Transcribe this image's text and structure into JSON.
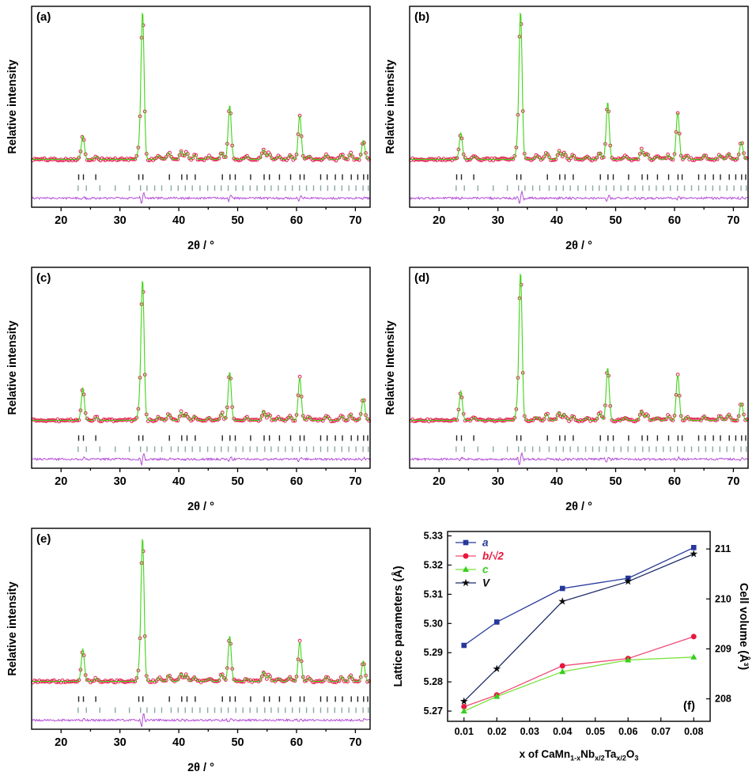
{
  "chart_data": [
    {
      "type": "xrd-pattern",
      "panel_label": "(a)",
      "xlabel": "2θ / °",
      "ylabel": "Relative intensity",
      "xlim": [
        15,
        72.5
      ],
      "xticks": [
        20,
        30,
        40,
        50,
        60,
        70
      ],
      "seed": 101,
      "series": [
        {
          "name": "observed",
          "style": "open-circle-markers",
          "color": "#e0204b"
        },
        {
          "name": "calculated",
          "style": "solid-line",
          "color": "#41d318"
        },
        {
          "name": "bragg-reflections-phase-1",
          "style": "tick-marks",
          "color": "#222222"
        },
        {
          "name": "bragg-reflections-phase-2",
          "style": "tick-marks",
          "color": "#8ba8a3"
        },
        {
          "name": "difference",
          "style": "solid-line",
          "color": "#b44fd8"
        }
      ],
      "peaks": [
        [
          23.7,
          0.16
        ],
        [
          26.0,
          0.02
        ],
        [
          33.3,
          0.08
        ],
        [
          33.85,
          1.0
        ],
        [
          36.6,
          0.025
        ],
        [
          38.3,
          0.045
        ],
        [
          40.4,
          0.055
        ],
        [
          41.3,
          0.045
        ],
        [
          42.7,
          0.03
        ],
        [
          45.1,
          0.02
        ],
        [
          47.3,
          0.05
        ],
        [
          48.65,
          0.37
        ],
        [
          51.6,
          0.02
        ],
        [
          54.4,
          0.065
        ],
        [
          55.3,
          0.04
        ],
        [
          57.0,
          0.02
        ],
        [
          58.9,
          0.03
        ],
        [
          60.55,
          0.3
        ],
        [
          62.1,
          0.025
        ],
        [
          65.1,
          0.03
        ],
        [
          67.7,
          0.03
        ],
        [
          69.2,
          0.04
        ],
        [
          71.35,
          0.13
        ]
      ],
      "bragg_phase1": [
        23.0,
        23.8,
        25.9,
        33.2,
        33.9,
        38.4,
        40.5,
        41.4,
        42.8,
        47.4,
        48.7,
        49.6,
        52.2,
        54.5,
        55.4,
        57.1,
        59.0,
        60.6,
        61.3,
        64.1,
        65.2,
        66.6,
        67.8,
        69.3,
        70.4,
        71.4,
        72.1
      ],
      "bragg_phase2": [
        22.9,
        24.3,
        26.6,
        29.2,
        31.6,
        33.5,
        34.6,
        35.9,
        37.1,
        38.7,
        39.9,
        41.1,
        42.3,
        43.6,
        44.9,
        46.1,
        47.2,
        48.4,
        49.7,
        50.9,
        52.1,
        53.3,
        54.6,
        55.7,
        56.9,
        58.1,
        59.3,
        60.5,
        61.7,
        62.9,
        64.1,
        65.3,
        66.5,
        67.7,
        68.9,
        70.1,
        71.3,
        72.2
      ]
    },
    {
      "type": "xrd-pattern",
      "panel_label": "(b)",
      "xlabel": "2θ / °",
      "ylabel": "Relative intensity",
      "xlim": [
        15,
        72.5
      ],
      "xticks": [
        20,
        30,
        40,
        50,
        60,
        70
      ],
      "seed": 202,
      "series": [
        {
          "name": "observed",
          "style": "open-circle-markers",
          "color": "#e0204b"
        },
        {
          "name": "calculated",
          "style": "solid-line",
          "color": "#41d318"
        },
        {
          "name": "bragg-reflections-phase-1",
          "style": "tick-marks",
          "color": "#222222"
        },
        {
          "name": "bragg-reflections-phase-2",
          "style": "tick-marks",
          "color": "#8ba8a3"
        },
        {
          "name": "difference",
          "style": "solid-line",
          "color": "#b44fd8"
        }
      ],
      "peaks": [
        [
          23.7,
          0.18
        ],
        [
          26.0,
          0.02
        ],
        [
          33.3,
          0.08
        ],
        [
          33.85,
          1.0
        ],
        [
          36.6,
          0.025
        ],
        [
          38.3,
          0.045
        ],
        [
          40.4,
          0.055
        ],
        [
          41.3,
          0.045
        ],
        [
          42.7,
          0.03
        ],
        [
          45.1,
          0.02
        ],
        [
          47.3,
          0.05
        ],
        [
          48.65,
          0.39
        ],
        [
          51.6,
          0.02
        ],
        [
          54.4,
          0.065
        ],
        [
          55.3,
          0.04
        ],
        [
          57.0,
          0.02
        ],
        [
          58.9,
          0.03
        ],
        [
          60.55,
          0.32
        ],
        [
          62.1,
          0.025
        ],
        [
          65.1,
          0.03
        ],
        [
          67.7,
          0.03
        ],
        [
          69.2,
          0.04
        ],
        [
          71.35,
          0.12
        ]
      ],
      "bragg_phase1": [
        23.0,
        23.8,
        25.9,
        33.2,
        33.9,
        38.4,
        40.5,
        41.4,
        42.8,
        47.4,
        48.7,
        49.6,
        52.2,
        54.5,
        55.4,
        57.1,
        59.0,
        60.6,
        61.3,
        64.1,
        65.2,
        66.6,
        67.8,
        69.3,
        70.4,
        71.4,
        72.1
      ],
      "bragg_phase2": [
        22.9,
        24.3,
        26.6,
        29.2,
        31.6,
        33.5,
        34.6,
        35.9,
        37.1,
        38.7,
        39.9,
        41.1,
        42.3,
        43.6,
        44.9,
        46.1,
        47.2,
        48.4,
        49.7,
        50.9,
        52.1,
        53.3,
        54.6,
        55.7,
        56.9,
        58.1,
        59.3,
        60.5,
        61.7,
        62.9,
        64.1,
        65.3,
        66.5,
        67.7,
        68.9,
        70.1,
        71.3,
        72.2
      ]
    },
    {
      "type": "xrd-pattern",
      "panel_label": "(c)",
      "xlabel": "2θ / °",
      "ylabel": "Relative intensity",
      "xlim": [
        15,
        72.5
      ],
      "xticks": [
        20,
        30,
        40,
        50,
        60,
        70
      ],
      "seed": 303,
      "series": [
        {
          "name": "observed",
          "style": "open-circle-markers",
          "color": "#e0204b"
        },
        {
          "name": "calculated",
          "style": "solid-line",
          "color": "#41d318"
        },
        {
          "name": "bragg-reflections-phase-1",
          "style": "tick-marks",
          "color": "#222222"
        },
        {
          "name": "bragg-reflections-phase-2",
          "style": "tick-marks",
          "color": "#8ba8a3"
        },
        {
          "name": "difference",
          "style": "solid-line",
          "color": "#b44fd8"
        }
      ],
      "peaks": [
        [
          23.7,
          0.22
        ],
        [
          26.0,
          0.02
        ],
        [
          33.3,
          0.08
        ],
        [
          33.85,
          0.95
        ],
        [
          36.6,
          0.025
        ],
        [
          38.3,
          0.045
        ],
        [
          40.4,
          0.055
        ],
        [
          41.3,
          0.045
        ],
        [
          42.7,
          0.03
        ],
        [
          45.1,
          0.02
        ],
        [
          47.3,
          0.05
        ],
        [
          48.65,
          0.33
        ],
        [
          51.6,
          0.02
        ],
        [
          54.4,
          0.065
        ],
        [
          55.3,
          0.04
        ],
        [
          57.0,
          0.02
        ],
        [
          58.9,
          0.03
        ],
        [
          60.55,
          0.29
        ],
        [
          62.1,
          0.025
        ],
        [
          65.1,
          0.03
        ],
        [
          67.7,
          0.03
        ],
        [
          69.2,
          0.04
        ],
        [
          71.35,
          0.15
        ]
      ],
      "bragg_phase1": [
        23.0,
        23.8,
        25.9,
        33.2,
        33.9,
        38.4,
        40.5,
        41.4,
        42.8,
        47.4,
        48.7,
        49.6,
        52.2,
        54.5,
        55.4,
        57.1,
        59.0,
        60.6,
        61.3,
        64.1,
        65.2,
        66.6,
        67.8,
        69.3,
        70.4,
        71.4,
        72.1
      ],
      "bragg_phase2": [
        22.9,
        24.3,
        26.6,
        29.2,
        31.6,
        33.5,
        34.6,
        35.9,
        37.1,
        38.7,
        39.9,
        41.1,
        42.3,
        43.6,
        44.9,
        46.1,
        47.2,
        48.4,
        49.7,
        50.9,
        52.1,
        53.3,
        54.6,
        55.7,
        56.9,
        58.1,
        59.3,
        60.5,
        61.7,
        62.9,
        64.1,
        65.3,
        66.5,
        67.7,
        68.9,
        70.1,
        71.3,
        72.2
      ]
    },
    {
      "type": "xrd-pattern",
      "panel_label": "(d)",
      "xlabel": "2θ / °",
      "ylabel": "Relative Intensity",
      "xlim": [
        15,
        72.5
      ],
      "xticks": [
        20,
        30,
        40,
        50,
        60,
        70
      ],
      "seed": 404,
      "series": [
        {
          "name": "observed",
          "style": "open-circle-markers",
          "color": "#e0204b"
        },
        {
          "name": "calculated",
          "style": "solid-line",
          "color": "#41d318"
        },
        {
          "name": "bragg-reflections-phase-1",
          "style": "tick-marks",
          "color": "#222222"
        },
        {
          "name": "bragg-reflections-phase-2",
          "style": "tick-marks",
          "color": "#8ba8a3"
        },
        {
          "name": "difference",
          "style": "solid-line",
          "color": "#b44fd8"
        }
      ],
      "peaks": [
        [
          23.7,
          0.2
        ],
        [
          26.0,
          0.02
        ],
        [
          33.3,
          0.08
        ],
        [
          33.85,
          1.0
        ],
        [
          36.6,
          0.025
        ],
        [
          38.3,
          0.045
        ],
        [
          40.4,
          0.055
        ],
        [
          41.3,
          0.045
        ],
        [
          42.7,
          0.03
        ],
        [
          45.1,
          0.02
        ],
        [
          47.3,
          0.05
        ],
        [
          48.65,
          0.36
        ],
        [
          51.6,
          0.02
        ],
        [
          54.4,
          0.065
        ],
        [
          55.3,
          0.04
        ],
        [
          57.0,
          0.02
        ],
        [
          58.9,
          0.03
        ],
        [
          60.55,
          0.31
        ],
        [
          62.1,
          0.025
        ],
        [
          65.1,
          0.03
        ],
        [
          67.7,
          0.03
        ],
        [
          69.2,
          0.04
        ],
        [
          71.35,
          0.12
        ]
      ],
      "bragg_phase1": [
        23.0,
        23.8,
        25.9,
        33.2,
        33.9,
        38.4,
        40.5,
        41.4,
        42.8,
        47.4,
        48.7,
        49.6,
        52.2,
        54.5,
        55.4,
        57.1,
        59.0,
        60.6,
        61.3,
        64.1,
        65.2,
        66.6,
        67.8,
        69.3,
        70.4,
        71.4,
        72.1
      ],
      "bragg_phase2": [
        22.9,
        24.3,
        26.6,
        29.2,
        31.6,
        33.5,
        34.6,
        35.9,
        37.1,
        38.7,
        39.9,
        41.1,
        42.3,
        43.6,
        44.9,
        46.1,
        47.2,
        48.4,
        49.7,
        50.9,
        52.1,
        53.3,
        54.6,
        55.7,
        56.9,
        58.1,
        59.3,
        60.5,
        61.7,
        62.9,
        64.1,
        65.3,
        66.5,
        67.7,
        68.9,
        70.1,
        71.3,
        72.2
      ]
    },
    {
      "type": "xrd-pattern",
      "panel_label": "(e)",
      "xlabel": "2θ / °",
      "ylabel": "Relative intensity",
      "xlim": [
        15,
        72.5
      ],
      "xticks": [
        20,
        30,
        40,
        50,
        60,
        70
      ],
      "seed": 505,
      "series": [
        {
          "name": "observed",
          "style": "open-circle-markers",
          "color": "#e0204b"
        },
        {
          "name": "calculated",
          "style": "solid-line",
          "color": "#41d318"
        },
        {
          "name": "bragg-reflections-phase-1",
          "style": "tick-marks",
          "color": "#222222"
        },
        {
          "name": "bragg-reflections-phase-2",
          "style": "tick-marks",
          "color": "#8ba8a3"
        },
        {
          "name": "difference",
          "style": "solid-line",
          "color": "#b44fd8"
        }
      ],
      "peaks": [
        [
          23.7,
          0.22
        ],
        [
          26.0,
          0.02
        ],
        [
          33.3,
          0.08
        ],
        [
          33.85,
          0.97
        ],
        [
          36.6,
          0.025
        ],
        [
          38.3,
          0.045
        ],
        [
          40.4,
          0.055
        ],
        [
          41.3,
          0.045
        ],
        [
          42.7,
          0.03
        ],
        [
          45.1,
          0.02
        ],
        [
          47.3,
          0.05
        ],
        [
          48.65,
          0.31
        ],
        [
          51.6,
          0.02
        ],
        [
          54.4,
          0.065
        ],
        [
          55.3,
          0.04
        ],
        [
          57.0,
          0.02
        ],
        [
          58.9,
          0.03
        ],
        [
          60.55,
          0.27
        ],
        [
          62.1,
          0.025
        ],
        [
          65.1,
          0.03
        ],
        [
          67.7,
          0.03
        ],
        [
          69.2,
          0.04
        ],
        [
          71.35,
          0.14
        ]
      ],
      "bragg_phase1": [
        23.0,
        23.8,
        25.9,
        33.2,
        33.9,
        38.4,
        40.5,
        41.4,
        42.8,
        47.4,
        48.7,
        49.6,
        52.2,
        54.5,
        55.4,
        57.1,
        59.0,
        60.6,
        61.3,
        64.1,
        65.2,
        66.6,
        67.8,
        69.3,
        70.4,
        71.4,
        72.1
      ],
      "bragg_phase2": [
        22.9,
        24.3,
        26.6,
        29.2,
        31.6,
        33.5,
        34.6,
        35.9,
        37.1,
        38.7,
        39.9,
        41.1,
        42.3,
        43.6,
        44.9,
        46.1,
        47.2,
        48.4,
        49.7,
        50.9,
        52.1,
        53.3,
        54.6,
        55.7,
        56.9,
        58.1,
        59.3,
        60.5,
        61.7,
        62.9,
        64.1,
        65.3,
        66.5,
        67.7,
        68.9,
        70.1,
        71.3,
        72.2
      ]
    },
    {
      "type": "line-scatter",
      "panel_label": "(f)",
      "xlabel_parts": [
        {
          "t": "x of CaMn"
        },
        {
          "t": "1-x",
          "sub": true
        },
        {
          "t": "Nb"
        },
        {
          "t": "x/2",
          "sub": true
        },
        {
          "t": "Ta"
        },
        {
          "t": "x/2",
          "sub": true
        },
        {
          "t": "O"
        },
        {
          "t": "3",
          "sub": true
        }
      ],
      "ylabel_left": "Lattice parameters (Å)",
      "ylabel_right": "Cell volume (Å³)",
      "xlim": [
        0.005,
        0.085
      ],
      "xticks": [
        0.01,
        0.02,
        0.03,
        0.04,
        0.05,
        0.06,
        0.07,
        0.08
      ],
      "ylim_left": [
        5.2665,
        5.3315
      ],
      "yticks_left": [
        5.27,
        5.28,
        5.29,
        5.3,
        5.31,
        5.32,
        5.33
      ],
      "ylim_right": [
        207.55,
        211.35
      ],
      "yticks_right": [
        208,
        209,
        210,
        211
      ],
      "x": [
        0.01,
        0.02,
        0.04,
        0.06,
        0.08
      ],
      "series": [
        {
          "name": "a",
          "axis": "left",
          "marker": "square",
          "color": "#26379b",
          "line_color": "#26379b",
          "values": [
            5.2925,
            5.3005,
            5.312,
            5.3155,
            5.326
          ]
        },
        {
          "name": "b/√2",
          "axis": "left",
          "marker": "circle",
          "color": "#e8173d",
          "line_color": "#ef4d75",
          "values": [
            5.2715,
            5.2755,
            5.2855,
            5.288,
            5.2955
          ]
        },
        {
          "name": "c",
          "axis": "left",
          "marker": "triangle",
          "color": "#35cf1a",
          "line_color": "#7be23c",
          "values": [
            5.27,
            5.275,
            5.2835,
            5.2875,
            5.2885
          ]
        },
        {
          "name": "V",
          "axis": "right",
          "marker": "star",
          "color": "#0a0a0a",
          "line_color": "#1c2a66",
          "values": [
            207.95,
            208.6,
            209.95,
            210.35,
            210.9
          ]
        }
      ]
    }
  ]
}
